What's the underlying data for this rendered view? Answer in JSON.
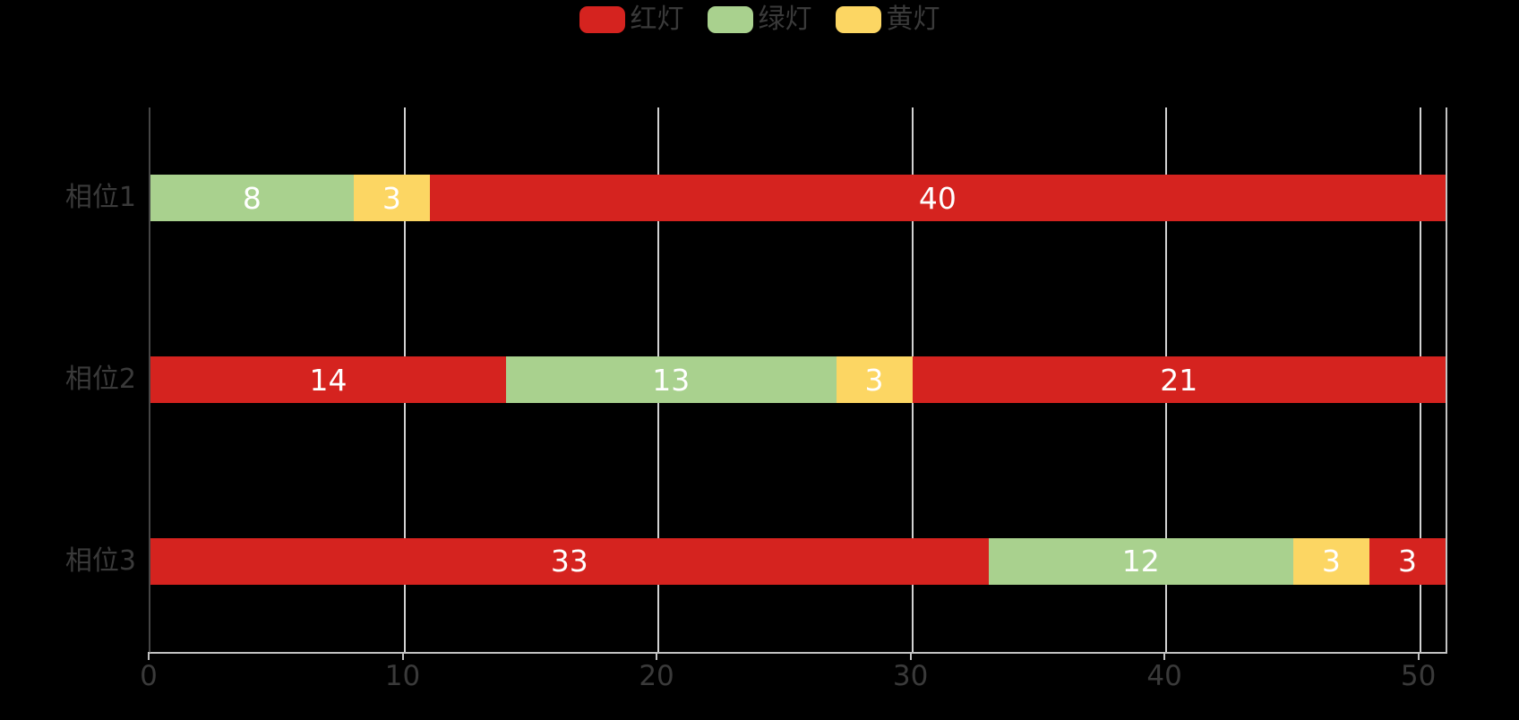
{
  "chart_data": {
    "type": "bar",
    "orientation": "horizontal",
    "stacked": true,
    "title": "",
    "xlabel": "",
    "ylabel": "",
    "background_color": "#000000",
    "categories": [
      "相位1",
      "相位2",
      "相位3"
    ],
    "legend": {
      "position": "top-center",
      "items": [
        {
          "label": "红灯",
          "color": "#d5231f"
        },
        {
          "label": "绿灯",
          "color": "#a9d18e"
        },
        {
          "label": "黄灯",
          "color": "#fcd663"
        }
      ]
    },
    "series_colors": {
      "红灯": "#d5231f",
      "绿灯": "#a9d18e",
      "黄灯": "#fcd663"
    },
    "rows": [
      {
        "category": "相位1",
        "segments": [
          {
            "series": "绿灯",
            "value": 8
          },
          {
            "series": "黄灯",
            "value": 3
          },
          {
            "series": "红灯",
            "value": 40
          }
        ]
      },
      {
        "category": "相位2",
        "segments": [
          {
            "series": "红灯",
            "value": 14
          },
          {
            "series": "绿灯",
            "value": 13
          },
          {
            "series": "黄灯",
            "value": 3
          },
          {
            "series": "红灯",
            "value": 21
          }
        ]
      },
      {
        "category": "相位3",
        "segments": [
          {
            "series": "红灯",
            "value": 33
          },
          {
            "series": "绿灯",
            "value": 12
          },
          {
            "series": "黄灯",
            "value": 3
          },
          {
            "series": "红灯",
            "value": 3
          }
        ]
      }
    ],
    "xlim": [
      0,
      51
    ],
    "x_ticks": [
      "0",
      "10",
      "20",
      "30",
      "40",
      "50"
    ],
    "grid": true
  },
  "style_colors": {
    "bar_value_text": "#ffffff",
    "axis_text": "#3a3a3a",
    "gridline": "#d2d2d2",
    "axis_line": "#c2c2c2",
    "left_spine": "#464646"
  }
}
